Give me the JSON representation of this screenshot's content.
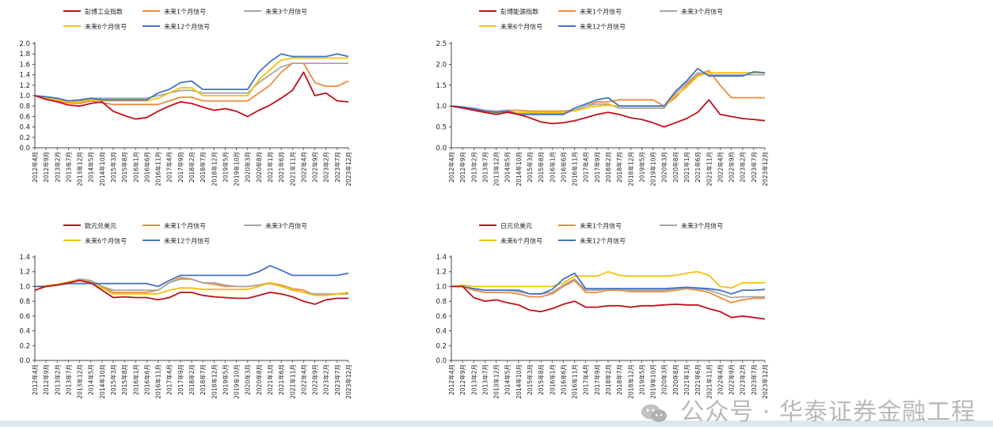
{
  "x_tick_labels": [
    "2012年4月",
    "2012年9月",
    "2013年2月",
    "2013年7月",
    "2013年12月",
    "2014年5月",
    "2014年10月",
    "2015年3月",
    "2015年8月",
    "2016年1月",
    "2016年6月",
    "2016年11月",
    "2017年4月",
    "2017年9月",
    "2018年2月",
    "2018年7月",
    "2018年12月",
    "2019年5月",
    "2019年10月",
    "2020年3月",
    "2020年8月",
    "2021年1月",
    "2021年6月",
    "2021年11月",
    "2022年4月",
    "2022年9月",
    "2023年2月",
    "2023年7月",
    "2023年12月"
  ],
  "colors": {
    "price": "#c0101a",
    "m1": "#ef8a3c",
    "m3": "#a6a6a6",
    "m6": "#f4c20d",
    "m12": "#4472c4"
  },
  "chart_data": [
    {
      "type": "line",
      "ylim": [
        0,
        2.0
      ],
      "yticks": [
        0,
        0.2,
        0.4,
        0.6,
        0.8,
        1.0,
        1.2,
        1.4,
        1.6,
        1.8,
        2.0
      ],
      "series": [
        {
          "name": "彭博工业指数",
          "key": "price",
          "values": [
            1.0,
            0.93,
            0.88,
            0.82,
            0.8,
            0.85,
            0.88,
            0.7,
            0.62,
            0.55,
            0.58,
            0.7,
            0.8,
            0.88,
            0.85,
            0.78,
            0.72,
            0.75,
            0.7,
            0.6,
            0.72,
            0.82,
            0.95,
            1.1,
            1.45,
            1.0,
            1.05,
            0.9,
            0.88
          ]
        },
        {
          "name": "未来1个月信号",
          "key": "m1",
          "values": [
            1.0,
            0.95,
            0.9,
            0.86,
            0.85,
            0.9,
            0.86,
            0.83,
            0.83,
            0.83,
            0.83,
            0.83,
            0.9,
            0.97,
            0.97,
            0.9,
            0.9,
            0.9,
            0.9,
            0.9,
            1.05,
            1.2,
            1.45,
            1.62,
            1.62,
            1.25,
            1.18,
            1.18,
            1.28
          ]
        },
        {
          "name": "未来3个月信号",
          "key": "m3",
          "values": [
            1.0,
            0.97,
            0.95,
            0.9,
            0.9,
            0.95,
            0.95,
            0.95,
            0.95,
            0.95,
            0.95,
            1.0,
            1.05,
            1.1,
            1.1,
            1.05,
            1.05,
            1.05,
            1.05,
            1.05,
            1.25,
            1.4,
            1.55,
            1.62,
            1.62,
            1.62,
            1.62,
            1.62,
            1.62
          ]
        },
        {
          "name": "未来6个月信号",
          "key": "m6",
          "values": [
            1.0,
            0.96,
            0.92,
            0.88,
            0.88,
            0.92,
            0.9,
            0.9,
            0.9,
            0.9,
            0.9,
            0.95,
            1.05,
            1.15,
            1.15,
            1.0,
            1.0,
            1.0,
            1.0,
            1.0,
            1.3,
            1.5,
            1.68,
            1.72,
            1.72,
            1.72,
            1.72,
            1.72,
            1.72
          ]
        },
        {
          "name": "未来12个月信号",
          "key": "m12",
          "values": [
            1.0,
            0.98,
            0.95,
            0.9,
            0.92,
            0.95,
            0.92,
            0.92,
            0.92,
            0.92,
            0.92,
            1.05,
            1.12,
            1.25,
            1.28,
            1.12,
            1.12,
            1.12,
            1.12,
            1.12,
            1.45,
            1.65,
            1.8,
            1.75,
            1.75,
            1.75,
            1.75,
            1.8,
            1.75
          ]
        }
      ]
    },
    {
      "type": "line",
      "ylim": [
        0,
        2.5
      ],
      "yticks": [
        0,
        0.5,
        1.0,
        1.5,
        2.0,
        2.5
      ],
      "series": [
        {
          "name": "彭博能源指数",
          "key": "price",
          "values": [
            1.0,
            0.95,
            0.9,
            0.85,
            0.8,
            0.85,
            0.8,
            0.72,
            0.62,
            0.58,
            0.6,
            0.65,
            0.72,
            0.8,
            0.85,
            0.8,
            0.72,
            0.68,
            0.6,
            0.5,
            0.6,
            0.7,
            0.85,
            1.15,
            0.8,
            0.75,
            0.7,
            0.68,
            0.65
          ]
        },
        {
          "name": "未来1个月信号",
          "key": "m1",
          "values": [
            1.0,
            0.97,
            0.92,
            0.88,
            0.85,
            0.9,
            0.9,
            0.88,
            0.88,
            0.88,
            0.88,
            0.9,
            1.0,
            1.1,
            1.1,
            1.15,
            1.15,
            1.15,
            1.15,
            1.0,
            1.2,
            1.5,
            1.75,
            1.85,
            1.5,
            1.2,
            1.2,
            1.2,
            1.2
          ]
        },
        {
          "name": "未来3个月信号",
          "key": "m3",
          "values": [
            1.0,
            0.98,
            0.95,
            0.9,
            0.88,
            0.9,
            0.82,
            0.82,
            0.82,
            0.82,
            0.82,
            0.9,
            1.0,
            1.05,
            1.05,
            0.95,
            0.95,
            0.95,
            0.95,
            0.95,
            1.3,
            1.55,
            1.8,
            1.75,
            1.75,
            1.75,
            1.75,
            1.75,
            1.75
          ]
        },
        {
          "name": "未来6个月信号",
          "key": "m6",
          "values": [
            1.0,
            0.96,
            0.9,
            0.84,
            0.82,
            0.85,
            0.85,
            0.85,
            0.85,
            0.85,
            0.85,
            0.88,
            0.95,
            1.0,
            1.02,
            1.0,
            1.0,
            1.0,
            1.0,
            1.0,
            1.25,
            1.45,
            1.72,
            1.8,
            1.8,
            1.8,
            1.8,
            1.8,
            1.8
          ]
        },
        {
          "name": "未来12个月信号",
          "key": "m12",
          "values": [
            1.0,
            0.98,
            0.93,
            0.88,
            0.85,
            0.88,
            0.8,
            0.8,
            0.8,
            0.8,
            0.8,
            0.95,
            1.05,
            1.15,
            1.2,
            1.0,
            1.0,
            1.0,
            1.0,
            1.0,
            1.35,
            1.6,
            1.9,
            1.72,
            1.72,
            1.72,
            1.72,
            1.82,
            1.8
          ]
        }
      ]
    },
    {
      "type": "line",
      "ylim": [
        0,
        1.4
      ],
      "yticks": [
        0,
        0.2,
        0.4,
        0.6,
        0.8,
        1.0,
        1.2,
        1.4
      ],
      "series": [
        {
          "name": "欧元兑美元",
          "key": "price",
          "values": [
            0.95,
            1.0,
            1.02,
            1.05,
            1.08,
            1.05,
            0.95,
            0.85,
            0.86,
            0.85,
            0.85,
            0.82,
            0.85,
            0.92,
            0.92,
            0.88,
            0.86,
            0.85,
            0.84,
            0.84,
            0.88,
            0.92,
            0.9,
            0.86,
            0.8,
            0.76,
            0.82,
            0.84,
            0.84
          ]
        },
        {
          "name": "未来1个月信号",
          "key": "m1",
          "values": [
            1.0,
            1.0,
            1.02,
            1.06,
            1.1,
            1.08,
            1.0,
            0.92,
            0.92,
            0.92,
            0.92,
            0.95,
            1.05,
            1.12,
            1.1,
            1.05,
            1.03,
            1.0,
            1.0,
            1.0,
            1.02,
            1.05,
            1.02,
            0.97,
            0.95,
            0.88,
            0.88,
            0.9,
            0.9
          ]
        },
        {
          "name": "未来3个月信号",
          "key": "m3",
          "values": [
            1.0,
            1.0,
            1.02,
            1.05,
            1.1,
            1.08,
            1.0,
            0.95,
            0.95,
            0.95,
            0.95,
            0.95,
            1.05,
            1.1,
            1.1,
            1.05,
            1.05,
            1.02,
            1.0,
            1.0,
            1.02,
            1.04,
            1.0,
            0.95,
            0.92,
            0.9,
            0.9,
            0.9,
            0.9
          ]
        },
        {
          "name": "未来6个月信号",
          "key": "m6",
          "values": [
            1.0,
            1.01,
            1.03,
            1.06,
            1.08,
            1.06,
            0.98,
            0.9,
            0.9,
            0.9,
            0.9,
            0.9,
            0.95,
            0.98,
            0.98,
            0.96,
            0.96,
            0.96,
            0.96,
            0.96,
            1.0,
            1.05,
            1.0,
            0.96,
            0.92,
            0.88,
            0.88,
            0.9,
            0.92
          ]
        },
        {
          "name": "未来12个月信号",
          "key": "m12",
          "values": [
            1.0,
            1.0,
            1.02,
            1.04,
            1.04,
            1.04,
            1.04,
            1.04,
            1.04,
            1.04,
            1.04,
            1.0,
            1.08,
            1.15,
            1.15,
            1.15,
            1.15,
            1.15,
            1.15,
            1.15,
            1.2,
            1.28,
            1.22,
            1.15,
            1.15,
            1.15,
            1.15,
            1.15,
            1.18
          ]
        }
      ]
    },
    {
      "type": "line",
      "ylim": [
        0,
        1.4
      ],
      "yticks": [
        0,
        0.2,
        0.4,
        0.6,
        0.8,
        1.0,
        1.2,
        1.4
      ],
      "series": [
        {
          "name": "日元兑美元",
          "key": "price",
          "values": [
            1.0,
            1.0,
            0.85,
            0.8,
            0.82,
            0.78,
            0.75,
            0.68,
            0.66,
            0.7,
            0.76,
            0.8,
            0.72,
            0.72,
            0.74,
            0.74,
            0.72,
            0.74,
            0.74,
            0.75,
            0.76,
            0.75,
            0.75,
            0.7,
            0.66,
            0.58,
            0.6,
            0.58,
            0.56
          ]
        },
        {
          "name": "未来1个月信号",
          "key": "m1",
          "values": [
            1.0,
            1.0,
            0.95,
            0.92,
            0.92,
            0.92,
            0.9,
            0.86,
            0.86,
            0.9,
            1.0,
            1.08,
            0.92,
            0.92,
            0.95,
            0.95,
            0.93,
            0.93,
            0.93,
            0.93,
            0.95,
            0.97,
            0.95,
            0.92,
            0.85,
            0.78,
            0.82,
            0.84,
            0.84
          ]
        },
        {
          "name": "未来3个月信号",
          "key": "m3",
          "values": [
            1.0,
            1.0,
            0.97,
            0.95,
            0.95,
            0.95,
            0.93,
            0.9,
            0.9,
            0.92,
            1.02,
            1.1,
            0.95,
            0.95,
            0.97,
            0.97,
            0.95,
            0.95,
            0.95,
            0.95,
            0.97,
            0.98,
            0.97,
            0.95,
            0.9,
            0.85,
            0.86,
            0.86,
            0.86
          ]
        },
        {
          "name": "未来6个月信号",
          "key": "m6",
          "values": [
            1.0,
            1.02,
            1.0,
            1.0,
            1.0,
            1.0,
            1.0,
            1.0,
            1.0,
            1.0,
            1.05,
            1.14,
            1.14,
            1.14,
            1.2,
            1.15,
            1.14,
            1.14,
            1.14,
            1.14,
            1.15,
            1.18,
            1.2,
            1.15,
            1.0,
            0.98,
            1.05,
            1.05,
            1.05
          ]
        },
        {
          "name": "未来12个月信号",
          "key": "m12",
          "values": [
            1.0,
            1.0,
            0.97,
            0.95,
            0.95,
            0.95,
            0.95,
            0.9,
            0.9,
            0.96,
            1.1,
            1.18,
            0.97,
            0.97,
            0.97,
            0.97,
            0.97,
            0.97,
            0.97,
            0.97,
            0.98,
            0.99,
            0.98,
            0.97,
            0.95,
            0.9,
            0.95,
            0.95,
            0.96
          ]
        }
      ]
    }
  ],
  "watermark": {
    "text": "公众号 · 华泰证券金融工程",
    "icon": "wechat-icon"
  }
}
